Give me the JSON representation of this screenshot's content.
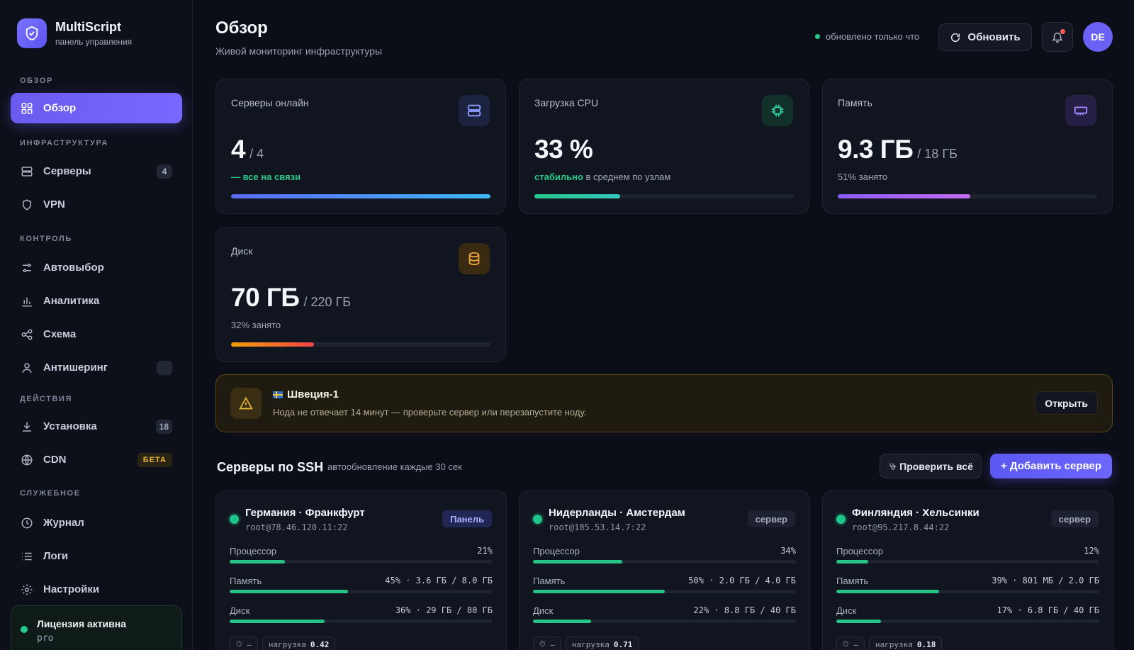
{
  "brand": {
    "name": "MultiScript",
    "subtitle": "панель управления"
  },
  "sidebar": {
    "sections": {
      "overview": "ОБЗОР",
      "infra": "ИНФРАСТРУКТУРА",
      "control": "КОНТРОЛЬ",
      "actions": "ДЕЙСТВИЯ",
      "service": "СЛУЖЕБНОЕ"
    },
    "items": {
      "overview": {
        "label": "Обзор",
        "icon": "grid-icon"
      },
      "servers": {
        "label": "Серверы",
        "count": "4",
        "icon": "server-icon"
      },
      "vpn": {
        "label": "VPN",
        "icon": "shield-icon"
      },
      "autoselect": {
        "label": "Автовыбор",
        "icon": "sliders-icon"
      },
      "analytics": {
        "label": "Аналитика",
        "icon": "bar-chart-icon"
      },
      "schema": {
        "label": "Схема",
        "icon": "share-icon"
      },
      "antisharing": {
        "label": "Антишеринг",
        "count": "",
        "icon": "user-icon"
      },
      "install": {
        "label": "Установка",
        "count": "18",
        "icon": "download-icon"
      },
      "cdn": {
        "label": "CDN",
        "badge": "БЕТА",
        "icon": "globe-icon"
      },
      "journal": {
        "label": "Журнал",
        "icon": "clock-icon"
      },
      "logs": {
        "label": "Логи",
        "icon": "list-icon"
      },
      "settings": {
        "label": "Настройки",
        "icon": "gear-icon"
      }
    },
    "license": {
      "title": "Лицензия активна",
      "plan": "pro"
    }
  },
  "header": {
    "title": "Обзор",
    "subtitle": "Живой мониторинг инфраструктуры",
    "status": "обновлено только что",
    "refresh_label": "Обновить",
    "avatar": "DE"
  },
  "stats": {
    "servers": {
      "label": "Серверы онлайн",
      "value": "4",
      "suffix": "/ 4",
      "note": "— все на связи",
      "progress": 1.0
    },
    "cpu": {
      "label": "Загрузка CPU",
      "value": "33 %",
      "note_accent": "стабильно",
      "note": "в среднем по узлам",
      "progress": 0.33
    },
    "memory": {
      "label": "Память",
      "value": "9.3 ГБ",
      "suffix": "/ 18 ГБ",
      "note": "51% занято",
      "progress": 0.51
    },
    "disk": {
      "label": "Диск",
      "value": "70 ГБ",
      "suffix": "/ 220 ГБ",
      "note": "32% занято",
      "progress": 0.32
    }
  },
  "alert": {
    "title": "Швеция-1",
    "text": "Нода не отвечает 14 минут — проверьте сервер или перезапустите ноду.",
    "button": "Открыть"
  },
  "ssh": {
    "title": "Серверы по SSH",
    "subtitle": "автообновление каждые 30 сек",
    "check_all": "Проверить всё",
    "add_server": "+ Добавить сервер",
    "servers": [
      {
        "name": "Германия · Франкфурт",
        "address": "root@78.46.120.11:22",
        "tag": "Панель",
        "cpu": {
          "label": "Процессор",
          "value": "21%",
          "progress": 0.21
        },
        "mem": {
          "label": "Память",
          "value": "45% · 3.6 ГБ / 8.0 ГБ",
          "progress": 0.45
        },
        "disk": {
          "label": "Диск",
          "value": "36% · 29 ГБ / 80 ГБ",
          "progress": 0.36
        },
        "ping": "–",
        "load_label": "нагрузка",
        "load": "0.42"
      },
      {
        "name": "Нидерланды · Амстердам",
        "address": "root@185.53.14.7:22",
        "tag": "сервер",
        "cpu": {
          "label": "Процессор",
          "value": "34%",
          "progress": 0.34
        },
        "mem": {
          "label": "Память",
          "value": "50% · 2.0 ГБ / 4.0 ГБ",
          "progress": 0.5
        },
        "disk": {
          "label": "Диск",
          "value": "22% · 8.8 ГБ / 40 ГБ",
          "progress": 0.22
        },
        "ping": "–",
        "load_label": "нагрузка",
        "load": "0.71"
      },
      {
        "name": "Финляндия · Хельсинки",
        "address": "root@95.217.8.44:22",
        "tag": "сервер",
        "cpu": {
          "label": "Процессор",
          "value": "12%",
          "progress": 0.12
        },
        "mem": {
          "label": "Память",
          "value": "39% · 801 МБ / 2.0 ГБ",
          "progress": 0.39
        },
        "disk": {
          "label": "Диск",
          "value": "17% · 6.8 ГБ / 40 ГБ",
          "progress": 0.17
        },
        "ping": "–",
        "load_label": "нагрузка",
        "load": "0.18"
      }
    ]
  },
  "colors": {
    "accent": "#6b5cf0",
    "success": "#27c98a",
    "warning": "#e6b53a"
  }
}
